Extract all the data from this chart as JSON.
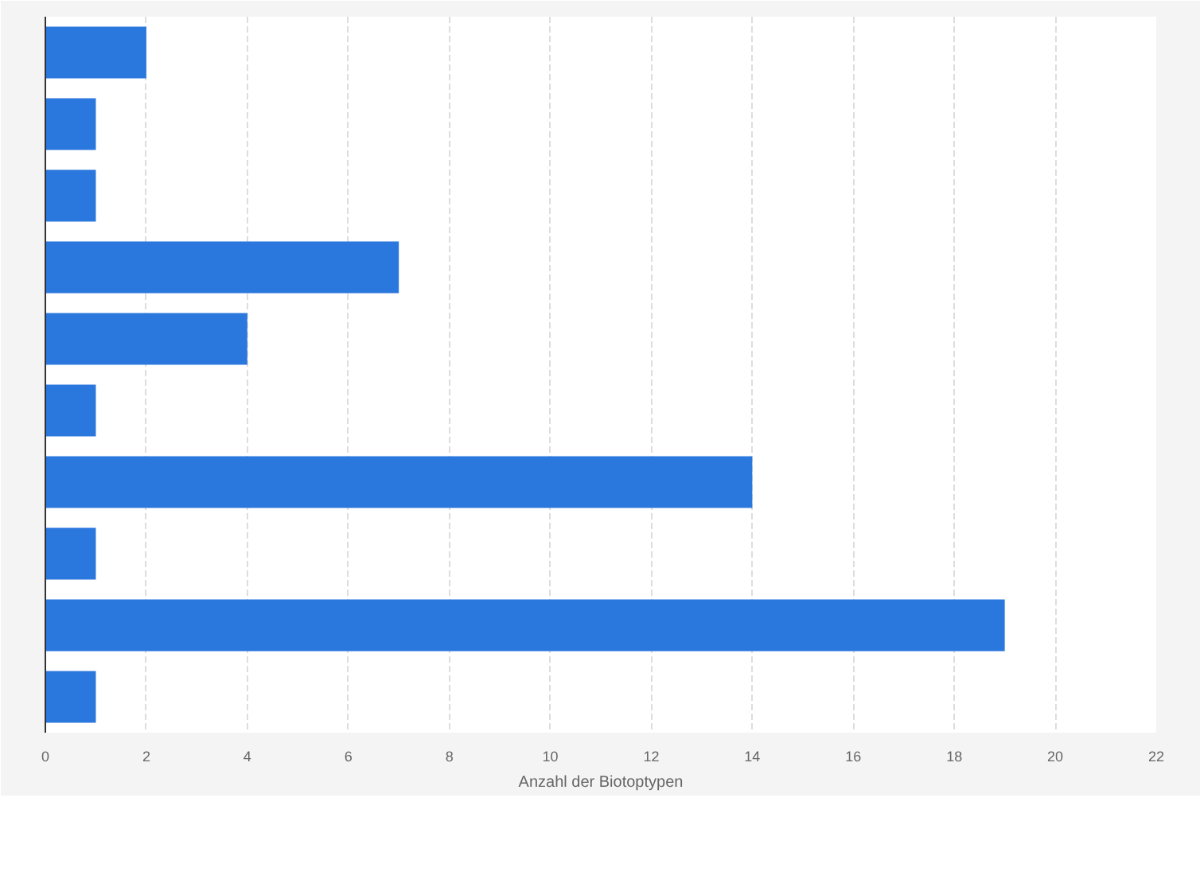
{
  "chart_data": {
    "type": "bar",
    "orientation": "horizontal",
    "xlabel": "Anzahl der Biotoptypen",
    "categories": [
      null,
      null,
      null,
      null,
      null,
      null,
      null,
      null,
      null,
      null
    ],
    "values": [
      2,
      1,
      1,
      7,
      4,
      1,
      14,
      1,
      19,
      1
    ],
    "color": "#2a77dd",
    "xlim": [
      0,
      22
    ],
    "xticks": [
      0,
      2,
      4,
      6,
      8,
      10,
      12,
      14,
      16,
      18,
      20,
      22
    ],
    "grid": "x",
    "tick_labels": "x"
  }
}
